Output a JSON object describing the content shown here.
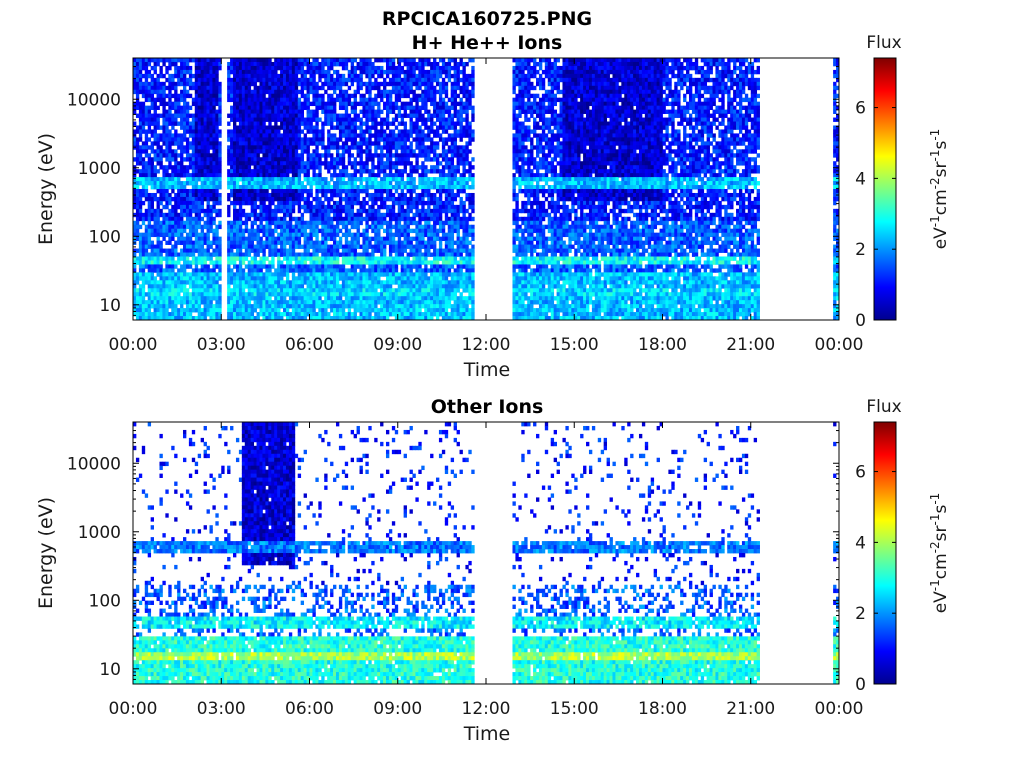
{
  "figure": {
    "title_line1": "RPCICA160725.PNG"
  },
  "colors": {
    "colormap": [
      "#00008f",
      "#0000ff",
      "#007fff",
      "#00ffff",
      "#7fff7f",
      "#ffff00",
      "#ff7f00",
      "#ff0000",
      "#7f0000"
    ],
    "axes": "#000000",
    "background": "#ffffff"
  },
  "chart_data": [
    {
      "type": "heatmap",
      "title": "H+ He++ Ions",
      "xlabel": "Time",
      "ylabel": "Energy (eV)",
      "xticks": [
        "00:00",
        "03:00",
        "06:00",
        "09:00",
        "12:00",
        "15:00",
        "18:00",
        "21:00",
        "00:00"
      ],
      "xlim_hours": [
        0,
        24
      ],
      "yscale": "log",
      "ylim": [
        6,
        40000
      ],
      "yticks": [
        10,
        100,
        1000,
        10000
      ],
      "ytick_labels": [
        "10",
        "100",
        "1000",
        "10000"
      ],
      "colorbar": {
        "title": "Flux",
        "label_base": "eV",
        "label_units": [
          "-1",
          "cm",
          "-2",
          "sr",
          "-1",
          "s",
          "-1"
        ],
        "range": [
          0,
          7.4
        ],
        "ticks": [
          0,
          2,
          4,
          6
        ]
      },
      "data_gaps_hours": [
        [
          3.0,
          3.2
        ],
        [
          11.6,
          12.9
        ],
        [
          21.3,
          23.8
        ]
      ],
      "high_energy_bursts_hours": [
        [
          2.1,
          2.9
        ],
        [
          3.4,
          5.6
        ],
        [
          14.6,
          18.0
        ]
      ],
      "bands": [
        {
          "energy_eV": 600,
          "level": 2.3
        },
        {
          "energy_eV": 45,
          "level": 2.8
        },
        {
          "energy_eV": 15,
          "level": 2.5
        }
      ]
    },
    {
      "type": "heatmap",
      "title": "Other Ions",
      "xlabel": "Time",
      "ylabel": "Energy (eV)",
      "xticks": [
        "00:00",
        "03:00",
        "06:00",
        "09:00",
        "12:00",
        "15:00",
        "18:00",
        "21:00",
        "00:00"
      ],
      "xlim_hours": [
        0,
        24
      ],
      "yscale": "log",
      "ylim": [
        6,
        40000
      ],
      "yticks": [
        10,
        100,
        1000,
        10000
      ],
      "ytick_labels": [
        "10",
        "100",
        "1000",
        "10000"
      ],
      "colorbar": {
        "title": "Flux",
        "label_base": "eV",
        "label_units": [
          "-1",
          "cm",
          "-2",
          "sr",
          "-1",
          "s",
          "-1"
        ],
        "range": [
          0,
          7.4
        ],
        "ticks": [
          0,
          2,
          4,
          6
        ]
      },
      "data_gaps_hours": [
        [
          11.6,
          12.9
        ],
        [
          21.3,
          23.8
        ]
      ],
      "high_energy_bursts_hours": [
        [
          3.7,
          5.5
        ]
      ],
      "bands": [
        {
          "energy_eV": 600,
          "level": 1.8
        },
        {
          "energy_eV": 48,
          "level": 2.7
        },
        {
          "energy_eV": 15,
          "level": 4.0
        }
      ]
    }
  ]
}
